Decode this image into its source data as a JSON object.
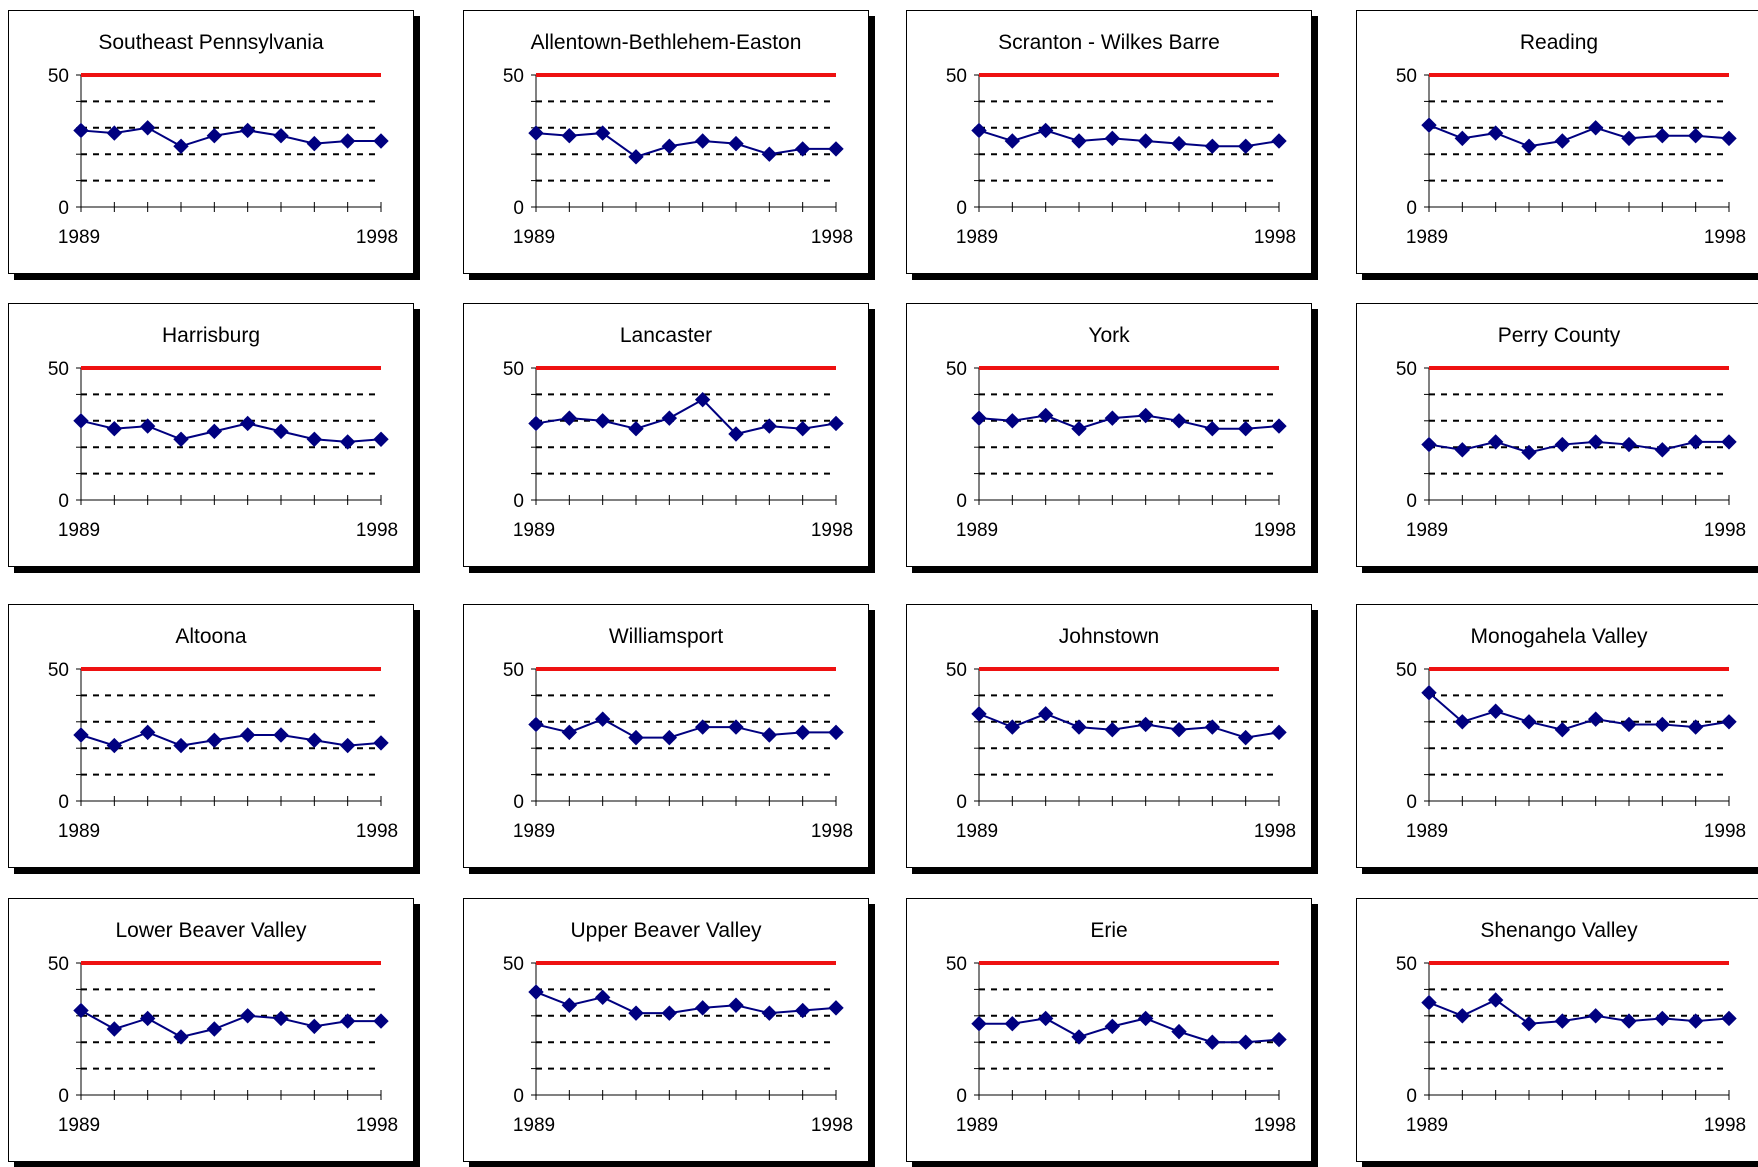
{
  "colors": {
    "reference_line": "#ee1111",
    "series": "#000080",
    "gridline": "#000000",
    "axis": "#000000"
  },
  "chart_data": [
    {
      "type": "line",
      "title": "Southeast Pennsylvania",
      "x": [
        "1989",
        "1990",
        "1991",
        "1992",
        "1993",
        "1994",
        "1995",
        "1996",
        "1997",
        "1998"
      ],
      "x_tick_labels": [
        "1989",
        "1998"
      ],
      "y_tick_labels": [
        "0",
        "50"
      ],
      "ylim": [
        0,
        50
      ],
      "grid": true,
      "reference_line": 50,
      "values": [
        29,
        28,
        30,
        23,
        27,
        29,
        27,
        24,
        25,
        25
      ]
    },
    {
      "type": "line",
      "title": "Allentown-Bethlehem-Easton",
      "x": [
        "1989",
        "1990",
        "1991",
        "1992",
        "1993",
        "1994",
        "1995",
        "1996",
        "1997",
        "1998"
      ],
      "x_tick_labels": [
        "1989",
        "1998"
      ],
      "y_tick_labels": [
        "0",
        "50"
      ],
      "ylim": [
        0,
        50
      ],
      "grid": true,
      "reference_line": 50,
      "values": [
        28,
        27,
        28,
        19,
        23,
        25,
        24,
        20,
        22,
        22
      ]
    },
    {
      "type": "line",
      "title": "Scranton - Wilkes Barre",
      "x": [
        "1989",
        "1990",
        "1991",
        "1992",
        "1993",
        "1994",
        "1995",
        "1996",
        "1997",
        "1998"
      ],
      "x_tick_labels": [
        "1989",
        "1998"
      ],
      "y_tick_labels": [
        "0",
        "50"
      ],
      "ylim": [
        0,
        50
      ],
      "grid": true,
      "reference_line": 50,
      "values": [
        29,
        25,
        29,
        25,
        26,
        25,
        24,
        23,
        23,
        25
      ]
    },
    {
      "type": "line",
      "title": "Reading",
      "x": [
        "1989",
        "1990",
        "1991",
        "1992",
        "1993",
        "1994",
        "1995",
        "1996",
        "1997",
        "1998"
      ],
      "x_tick_labels": [
        "1989",
        "1998"
      ],
      "y_tick_labels": [
        "0",
        "50"
      ],
      "ylim": [
        0,
        50
      ],
      "grid": true,
      "reference_line": 50,
      "values": [
        31,
        26,
        28,
        23,
        25,
        30,
        26,
        27,
        27,
        26
      ]
    },
    {
      "type": "line",
      "title": "Harrisburg",
      "x": [
        "1989",
        "1990",
        "1991",
        "1992",
        "1993",
        "1994",
        "1995",
        "1996",
        "1997",
        "1998"
      ],
      "x_tick_labels": [
        "1989",
        "1998"
      ],
      "y_tick_labels": [
        "0",
        "50"
      ],
      "ylim": [
        0,
        50
      ],
      "grid": true,
      "reference_line": 50,
      "values": [
        30,
        27,
        28,
        23,
        26,
        29,
        26,
        23,
        22,
        23
      ]
    },
    {
      "type": "line",
      "title": "Lancaster",
      "x": [
        "1989",
        "1990",
        "1991",
        "1992",
        "1993",
        "1994",
        "1995",
        "1996",
        "1997",
        "1998"
      ],
      "x_tick_labels": [
        "1989",
        "1998"
      ],
      "y_tick_labels": [
        "0",
        "50"
      ],
      "ylim": [
        0,
        50
      ],
      "grid": true,
      "reference_line": 50,
      "values": [
        29,
        31,
        30,
        27,
        31,
        38,
        25,
        28,
        27,
        29
      ]
    },
    {
      "type": "line",
      "title": "York",
      "x": [
        "1989",
        "1990",
        "1991",
        "1992",
        "1993",
        "1994",
        "1995",
        "1996",
        "1997",
        "1998"
      ],
      "x_tick_labels": [
        "1989",
        "1998"
      ],
      "y_tick_labels": [
        "0",
        "50"
      ],
      "ylim": [
        0,
        50
      ],
      "grid": true,
      "reference_line": 50,
      "values": [
        31,
        30,
        32,
        27,
        31,
        32,
        30,
        27,
        27,
        28
      ]
    },
    {
      "type": "line",
      "title": "Perry County",
      "x": [
        "1989",
        "1990",
        "1991",
        "1992",
        "1993",
        "1994",
        "1995",
        "1996",
        "1997",
        "1998"
      ],
      "x_tick_labels": [
        "1989",
        "1998"
      ],
      "y_tick_labels": [
        "0",
        "50"
      ],
      "ylim": [
        0,
        50
      ],
      "grid": true,
      "reference_line": 50,
      "values": [
        21,
        19,
        22,
        18,
        21,
        22,
        21,
        19,
        22,
        22
      ]
    },
    {
      "type": "line",
      "title": "Altoona",
      "x": [
        "1989",
        "1990",
        "1991",
        "1992",
        "1993",
        "1994",
        "1995",
        "1996",
        "1997",
        "1998"
      ],
      "x_tick_labels": [
        "1989",
        "1998"
      ],
      "y_tick_labels": [
        "0",
        "50"
      ],
      "ylim": [
        0,
        50
      ],
      "grid": true,
      "reference_line": 50,
      "values": [
        25,
        21,
        26,
        21,
        23,
        25,
        25,
        23,
        21,
        22
      ]
    },
    {
      "type": "line",
      "title": "Williamsport",
      "x": [
        "1989",
        "1990",
        "1991",
        "1992",
        "1993",
        "1994",
        "1995",
        "1996",
        "1997",
        "1998"
      ],
      "x_tick_labels": [
        "1989",
        "1998"
      ],
      "y_tick_labels": [
        "0",
        "50"
      ],
      "ylim": [
        0,
        50
      ],
      "grid": true,
      "reference_line": 50,
      "values": [
        29,
        26,
        31,
        24,
        24,
        28,
        28,
        25,
        26,
        26
      ]
    },
    {
      "type": "line",
      "title": "Johnstown",
      "x": [
        "1989",
        "1990",
        "1991",
        "1992",
        "1993",
        "1994",
        "1995",
        "1996",
        "1997",
        "1998"
      ],
      "x_tick_labels": [
        "1989",
        "1998"
      ],
      "y_tick_labels": [
        "0",
        "50"
      ],
      "ylim": [
        0,
        50
      ],
      "grid": true,
      "reference_line": 50,
      "values": [
        33,
        28,
        33,
        28,
        27,
        29,
        27,
        28,
        24,
        26
      ]
    },
    {
      "type": "line",
      "title": "Monogahela Valley",
      "x": [
        "1989",
        "1990",
        "1991",
        "1992",
        "1993",
        "1994",
        "1995",
        "1996",
        "1997",
        "1998"
      ],
      "x_tick_labels": [
        "1989",
        "1998"
      ],
      "y_tick_labels": [
        "0",
        "50"
      ],
      "ylim": [
        0,
        50
      ],
      "grid": true,
      "reference_line": 50,
      "values": [
        41,
        30,
        34,
        30,
        27,
        31,
        29,
        29,
        28,
        30
      ]
    },
    {
      "type": "line",
      "title": "Lower Beaver Valley",
      "x": [
        "1989",
        "1990",
        "1991",
        "1992",
        "1993",
        "1994",
        "1995",
        "1996",
        "1997",
        "1998"
      ],
      "x_tick_labels": [
        "1989",
        "1998"
      ],
      "y_tick_labels": [
        "0",
        "50"
      ],
      "ylim": [
        0,
        50
      ],
      "grid": true,
      "reference_line": 50,
      "values": [
        32,
        25,
        29,
        22,
        25,
        30,
        29,
        26,
        28,
        28
      ]
    },
    {
      "type": "line",
      "title": "Upper Beaver Valley",
      "x": [
        "1989",
        "1990",
        "1991",
        "1992",
        "1993",
        "1994",
        "1995",
        "1996",
        "1997",
        "1998"
      ],
      "x_tick_labels": [
        "1989",
        "1998"
      ],
      "y_tick_labels": [
        "0",
        "50"
      ],
      "ylim": [
        0,
        50
      ],
      "grid": true,
      "reference_line": 50,
      "values": [
        39,
        34,
        37,
        31,
        31,
        33,
        34,
        31,
        32,
        33
      ]
    },
    {
      "type": "line",
      "title": "Erie",
      "x": [
        "1989",
        "1990",
        "1991",
        "1992",
        "1993",
        "1994",
        "1995",
        "1996",
        "1997",
        "1998"
      ],
      "x_tick_labels": [
        "1989",
        "1998"
      ],
      "y_tick_labels": [
        "0",
        "50"
      ],
      "ylim": [
        0,
        50
      ],
      "grid": true,
      "reference_line": 50,
      "values": [
        27,
        27,
        29,
        22,
        26,
        29,
        24,
        20,
        20,
        21
      ]
    },
    {
      "type": "line",
      "title": "Shenango Valley",
      "x": [
        "1989",
        "1990",
        "1991",
        "1992",
        "1993",
        "1994",
        "1995",
        "1996",
        "1997",
        "1998"
      ],
      "x_tick_labels": [
        "1989",
        "1998"
      ],
      "y_tick_labels": [
        "0",
        "50"
      ],
      "ylim": [
        0,
        50
      ],
      "grid": true,
      "reference_line": 50,
      "values": [
        35,
        30,
        36,
        27,
        28,
        30,
        28,
        29,
        28,
        29
      ]
    }
  ]
}
